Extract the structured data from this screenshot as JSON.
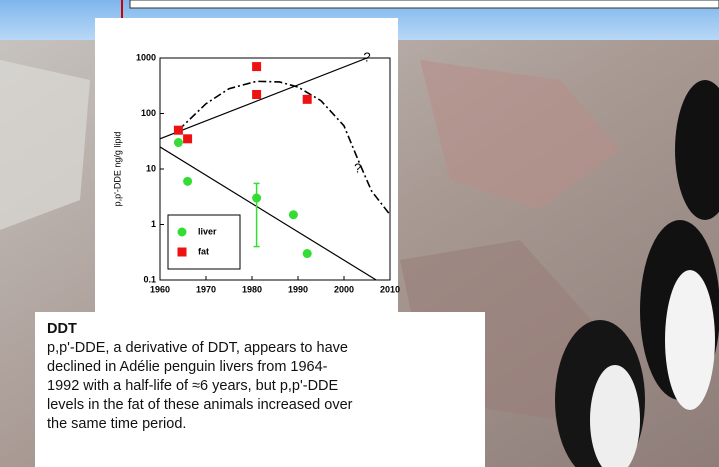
{
  "chart_data": {
    "type": "scatter",
    "ylabel": "p,p'-DDE ng/g lipid",
    "log_y": true,
    "xlim": [
      1960,
      2010
    ],
    "xticks": [
      1960,
      1970,
      1980,
      1990,
      2000,
      2010
    ],
    "ylim": [
      0.1,
      1000
    ],
    "yticks": [
      0.1,
      1,
      10,
      100,
      1000
    ],
    "legend": "lower left",
    "series": [
      {
        "name": "liver",
        "color": "#33dd33",
        "x": [
          1964,
          1966,
          1981,
          1989,
          1992
        ],
        "values": [
          30,
          6,
          3,
          1.5,
          0.3
        ]
      },
      {
        "name": "fat",
        "color": "#ee1111",
        "x": [
          1964,
          1966,
          1981,
          1981,
          1992
        ],
        "values": [
          50,
          35,
          700,
          220,
          180
        ]
      }
    ],
    "error_bars": [
      {
        "series": 0,
        "x": 1981,
        "low": 0.4,
        "high": 5.5
      }
    ],
    "trend_lines": [
      {
        "x": [
          1960,
          2005
        ],
        "values": [
          35,
          1000
        ]
      },
      {
        "x": [
          1960,
          2007
        ],
        "values": [
          25,
          0.1
        ]
      }
    ],
    "projection": {
      "x": [
        1964,
        1970,
        1975,
        1981,
        1986,
        1990,
        1995,
        2000,
        2003,
        2006,
        2010
      ],
      "values": [
        50,
        150,
        280,
        380,
        370,
        300,
        170,
        60,
        15,
        4,
        1.5
      ]
    },
    "annotations": [
      {
        "text": "?",
        "x": 2005,
        "y": 1000
      },
      {
        "text": "?",
        "x": 2003,
        "y": 10
      }
    ]
  },
  "slide": {
    "heading": "DDT",
    "body_lines": [
      "p,p'-DDE, a derivative of DDT, appears to have",
      "declined in Adélie penguin livers from 1964-",
      "1992 with a half-life of ≈6 years, but p,p'-DDE",
      "levels in the fat of these animals increased over",
      "the same time period."
    ]
  }
}
